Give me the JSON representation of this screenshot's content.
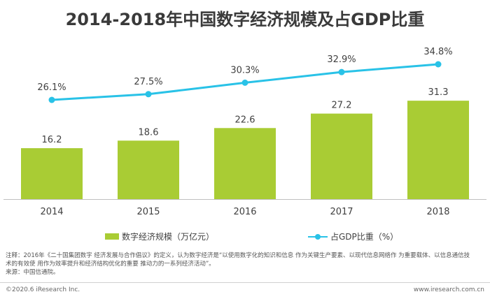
{
  "chart_data": {
    "type": "bar",
    "title": "2014-2018年中国数字经济规模及占GDP比重",
    "categories": [
      "2014",
      "2015",
      "2016",
      "2017",
      "2018"
    ],
    "series": [
      {
        "name": "数字经济规模（万亿元）",
        "type": "bar",
        "values": [
          16.2,
          18.6,
          22.6,
          27.2,
          31.3
        ],
        "labels": [
          "16.2",
          "18.6",
          "22.6",
          "27.2",
          "31.3"
        ],
        "color": "#a9cc34",
        "axis": "left",
        "ylim": [
          0,
          40
        ]
      },
      {
        "name": "占GDP比重（%）",
        "type": "line",
        "values": [
          26.1,
          27.5,
          30.3,
          32.9,
          34.8
        ],
        "labels": [
          "26.1%",
          "27.5%",
          "30.3%",
          "32.9%",
          "34.8%"
        ],
        "color": "#29c2e7",
        "axis": "right",
        "ylim": [
          0,
          40
        ]
      }
    ],
    "grid": false,
    "legend_position": "bottom"
  },
  "notes": [
    "注释：2016年《二十国集团数字 经济发展与合作倡议》的定义，认为数字经济是“以使用数字化的知识和信息 作为关键生产要素、以现代信息网络作 为重要载体、以信息通信技",
    "术的有效使 用作为效率提升和经济结构优化的重要 推动力的一系列经济活动”。",
    "来源：中国信通院。"
  ],
  "footer": {
    "copyright": "©2020.6 iResearch Inc.",
    "website": "www.iresearch.com.cn"
  }
}
